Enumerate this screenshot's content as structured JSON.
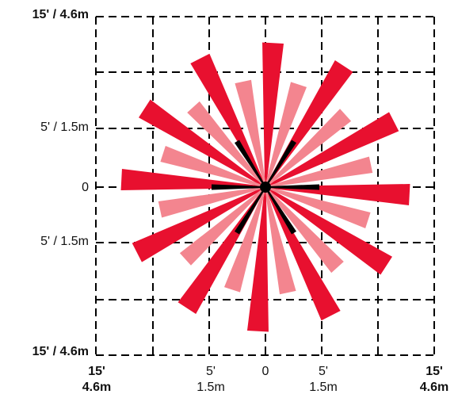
{
  "diagram": {
    "y_labels": [
      {
        "text": "15' / 4.6m",
        "emphasis": "bold"
      },
      {
        "text": "5' / 1.5m",
        "emphasis": "normal"
      },
      {
        "text": "0",
        "emphasis": "normal"
      },
      {
        "text": "5' / 1.5m",
        "emphasis": "normal"
      },
      {
        "text": "15' / 4.6m",
        "emphasis": "bold"
      }
    ],
    "x_labels": [
      {
        "line1": "15'",
        "line2": "4.6m",
        "emphasis": "bold"
      },
      {
        "line1": "5'",
        "line2": "1.5m",
        "emphasis": "normal"
      },
      {
        "line1": "0",
        "line2": "",
        "emphasis": "normal"
      },
      {
        "line1": "5'",
        "line2": "1.5m",
        "emphasis": "normal"
      },
      {
        "line1": "15'",
        "line2": "4.6m",
        "emphasis": "bold"
      }
    ],
    "colors": {
      "outer_beams": "#e8102f",
      "inner_beams": "#f3858f",
      "short_beams": "#000000",
      "grid_lines": "#000000"
    },
    "beam_sets": {
      "outer_count": 12,
      "inner_count": 12,
      "short_count": 6
    }
  }
}
